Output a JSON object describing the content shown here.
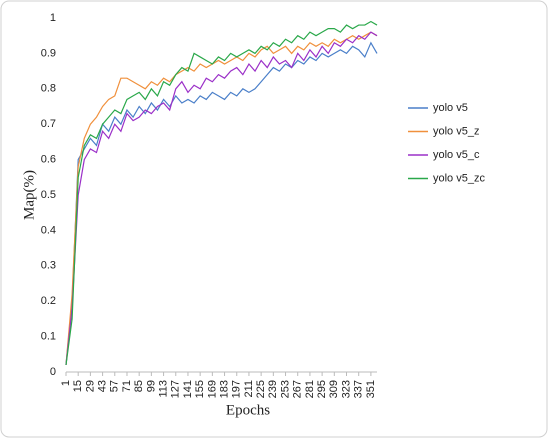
{
  "chart_data": {
    "type": "line",
    "xlabel": "Epochs",
    "ylabel": "Map(%)",
    "x": [
      1,
      8,
      15,
      22,
      29,
      36,
      43,
      50,
      57,
      64,
      71,
      78,
      85,
      92,
      99,
      106,
      113,
      120,
      127,
      134,
      141,
      148,
      155,
      162,
      169,
      176,
      183,
      190,
      197,
      204,
      211,
      218,
      225,
      232,
      239,
      246,
      253,
      260,
      267,
      274,
      281,
      288,
      295,
      302,
      309,
      316,
      323,
      330,
      337,
      344,
      351,
      358
    ],
    "xlim": [
      1,
      358
    ],
    "xticks": [
      1,
      15,
      29,
      43,
      57,
      71,
      85,
      99,
      113,
      127,
      141,
      155,
      169,
      183,
      197,
      211,
      225,
      239,
      253,
      267,
      281,
      295,
      309,
      323,
      337,
      351
    ],
    "ylim": [
      0,
      1
    ],
    "yticks": [
      0,
      0.1,
      0.2,
      0.3,
      0.4,
      0.5,
      0.6,
      0.7,
      0.8,
      0.9,
      1
    ],
    "grid": false,
    "legend": "right",
    "series": [
      {
        "name": "yolo v5",
        "color": "#4a7fc9",
        "values": [
          0.02,
          0.2,
          0.6,
          0.63,
          0.66,
          0.64,
          0.7,
          0.68,
          0.72,
          0.7,
          0.74,
          0.72,
          0.75,
          0.73,
          0.76,
          0.74,
          0.77,
          0.75,
          0.78,
          0.76,
          0.77,
          0.76,
          0.78,
          0.77,
          0.79,
          0.78,
          0.77,
          0.79,
          0.78,
          0.8,
          0.79,
          0.8,
          0.82,
          0.84,
          0.86,
          0.85,
          0.87,
          0.86,
          0.88,
          0.87,
          0.89,
          0.88,
          0.9,
          0.89,
          0.9,
          0.91,
          0.9,
          0.92,
          0.91,
          0.89,
          0.93,
          0.9
        ]
      },
      {
        "name": "yolo v5_z",
        "color": "#f0903c",
        "values": [
          0.02,
          0.22,
          0.58,
          0.66,
          0.7,
          0.72,
          0.75,
          0.77,
          0.78,
          0.83,
          0.83,
          0.82,
          0.81,
          0.8,
          0.82,
          0.81,
          0.83,
          0.82,
          0.84,
          0.85,
          0.86,
          0.85,
          0.87,
          0.86,
          0.87,
          0.88,
          0.87,
          0.88,
          0.89,
          0.88,
          0.9,
          0.89,
          0.91,
          0.92,
          0.9,
          0.91,
          0.92,
          0.9,
          0.92,
          0.91,
          0.93,
          0.92,
          0.93,
          0.92,
          0.94,
          0.93,
          0.94,
          0.95,
          0.94,
          0.95,
          0.96,
          0.95
        ]
      },
      {
        "name": "yolo v5_c",
        "color": "#9b30c8",
        "values": [
          0.02,
          0.18,
          0.5,
          0.6,
          0.63,
          0.62,
          0.68,
          0.66,
          0.7,
          0.68,
          0.73,
          0.71,
          0.72,
          0.74,
          0.73,
          0.75,
          0.76,
          0.74,
          0.8,
          0.82,
          0.79,
          0.81,
          0.8,
          0.83,
          0.82,
          0.84,
          0.83,
          0.85,
          0.86,
          0.84,
          0.87,
          0.85,
          0.88,
          0.86,
          0.89,
          0.87,
          0.88,
          0.86,
          0.9,
          0.88,
          0.91,
          0.89,
          0.92,
          0.9,
          0.93,
          0.92,
          0.94,
          0.93,
          0.95,
          0.94,
          0.96,
          0.95
        ]
      },
      {
        "name": "yolo v5_zc",
        "color": "#2aa84a",
        "values": [
          0.02,
          0.15,
          0.55,
          0.64,
          0.67,
          0.66,
          0.7,
          0.72,
          0.74,
          0.73,
          0.77,
          0.78,
          0.79,
          0.77,
          0.8,
          0.78,
          0.82,
          0.81,
          0.84,
          0.86,
          0.85,
          0.9,
          0.89,
          0.88,
          0.87,
          0.89,
          0.88,
          0.9,
          0.89,
          0.9,
          0.91,
          0.9,
          0.92,
          0.91,
          0.93,
          0.92,
          0.94,
          0.93,
          0.95,
          0.94,
          0.96,
          0.95,
          0.96,
          0.97,
          0.97,
          0.96,
          0.98,
          0.97,
          0.98,
          0.98,
          0.99,
          0.98
        ]
      }
    ]
  }
}
